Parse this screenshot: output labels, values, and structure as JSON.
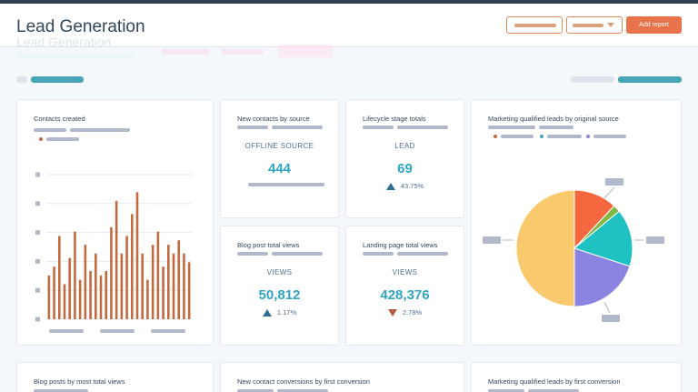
{
  "header": {
    "title": "Lead Generation",
    "title_ghost": "Lead Generation",
    "primary_button_label": "Add report"
  },
  "cards": {
    "contacts_created": {
      "title": "Contacts created"
    },
    "new_contacts": {
      "title": "New contacts by source",
      "label": "OFFLINE SOURCE",
      "value": "444"
    },
    "lifecycle": {
      "title": "Lifecycle stage totals",
      "label": "LEAD",
      "value": "69",
      "change": "43.75%"
    },
    "mql_source": {
      "title": "Marketing qualified leads by original source"
    },
    "blog_views": {
      "title": "Blog post total views",
      "label": "VIEWS",
      "value": "50,812",
      "change": "1.17%"
    },
    "landing_views": {
      "title": "Landing page total views",
      "label": "VIEWS",
      "value": "428,376",
      "change": "2.78%"
    },
    "blog_posts": {
      "title": "Blog posts by most total views"
    },
    "contact_conversions": {
      "title": "New contact conversions by first conversion"
    },
    "mql_conversion": {
      "title": "Marketing qualified leads by first conversion"
    }
  },
  "colors": {
    "accent": "#2fa5c2",
    "bar": "#c46a3f",
    "pie": [
      "#f9c96e",
      "#f5683f",
      "#7fb844",
      "#1fc1c3",
      "#8b83e0"
    ]
  },
  "chart_data": [
    {
      "type": "bar",
      "title": "Contacts created",
      "values": [
        10,
        12,
        19,
        8,
        14,
        20,
        9,
        17,
        11,
        15,
        10,
        11,
        21,
        27,
        15,
        19,
        24,
        29,
        15,
        9,
        17,
        20,
        12,
        17,
        15,
        18,
        15,
        13
      ],
      "ylim": [
        0,
        33
      ]
    },
    {
      "type": "pie",
      "title": "Marketing qualified leads by original source",
      "values": [
        50,
        12,
        2,
        16,
        20
      ]
    }
  ]
}
